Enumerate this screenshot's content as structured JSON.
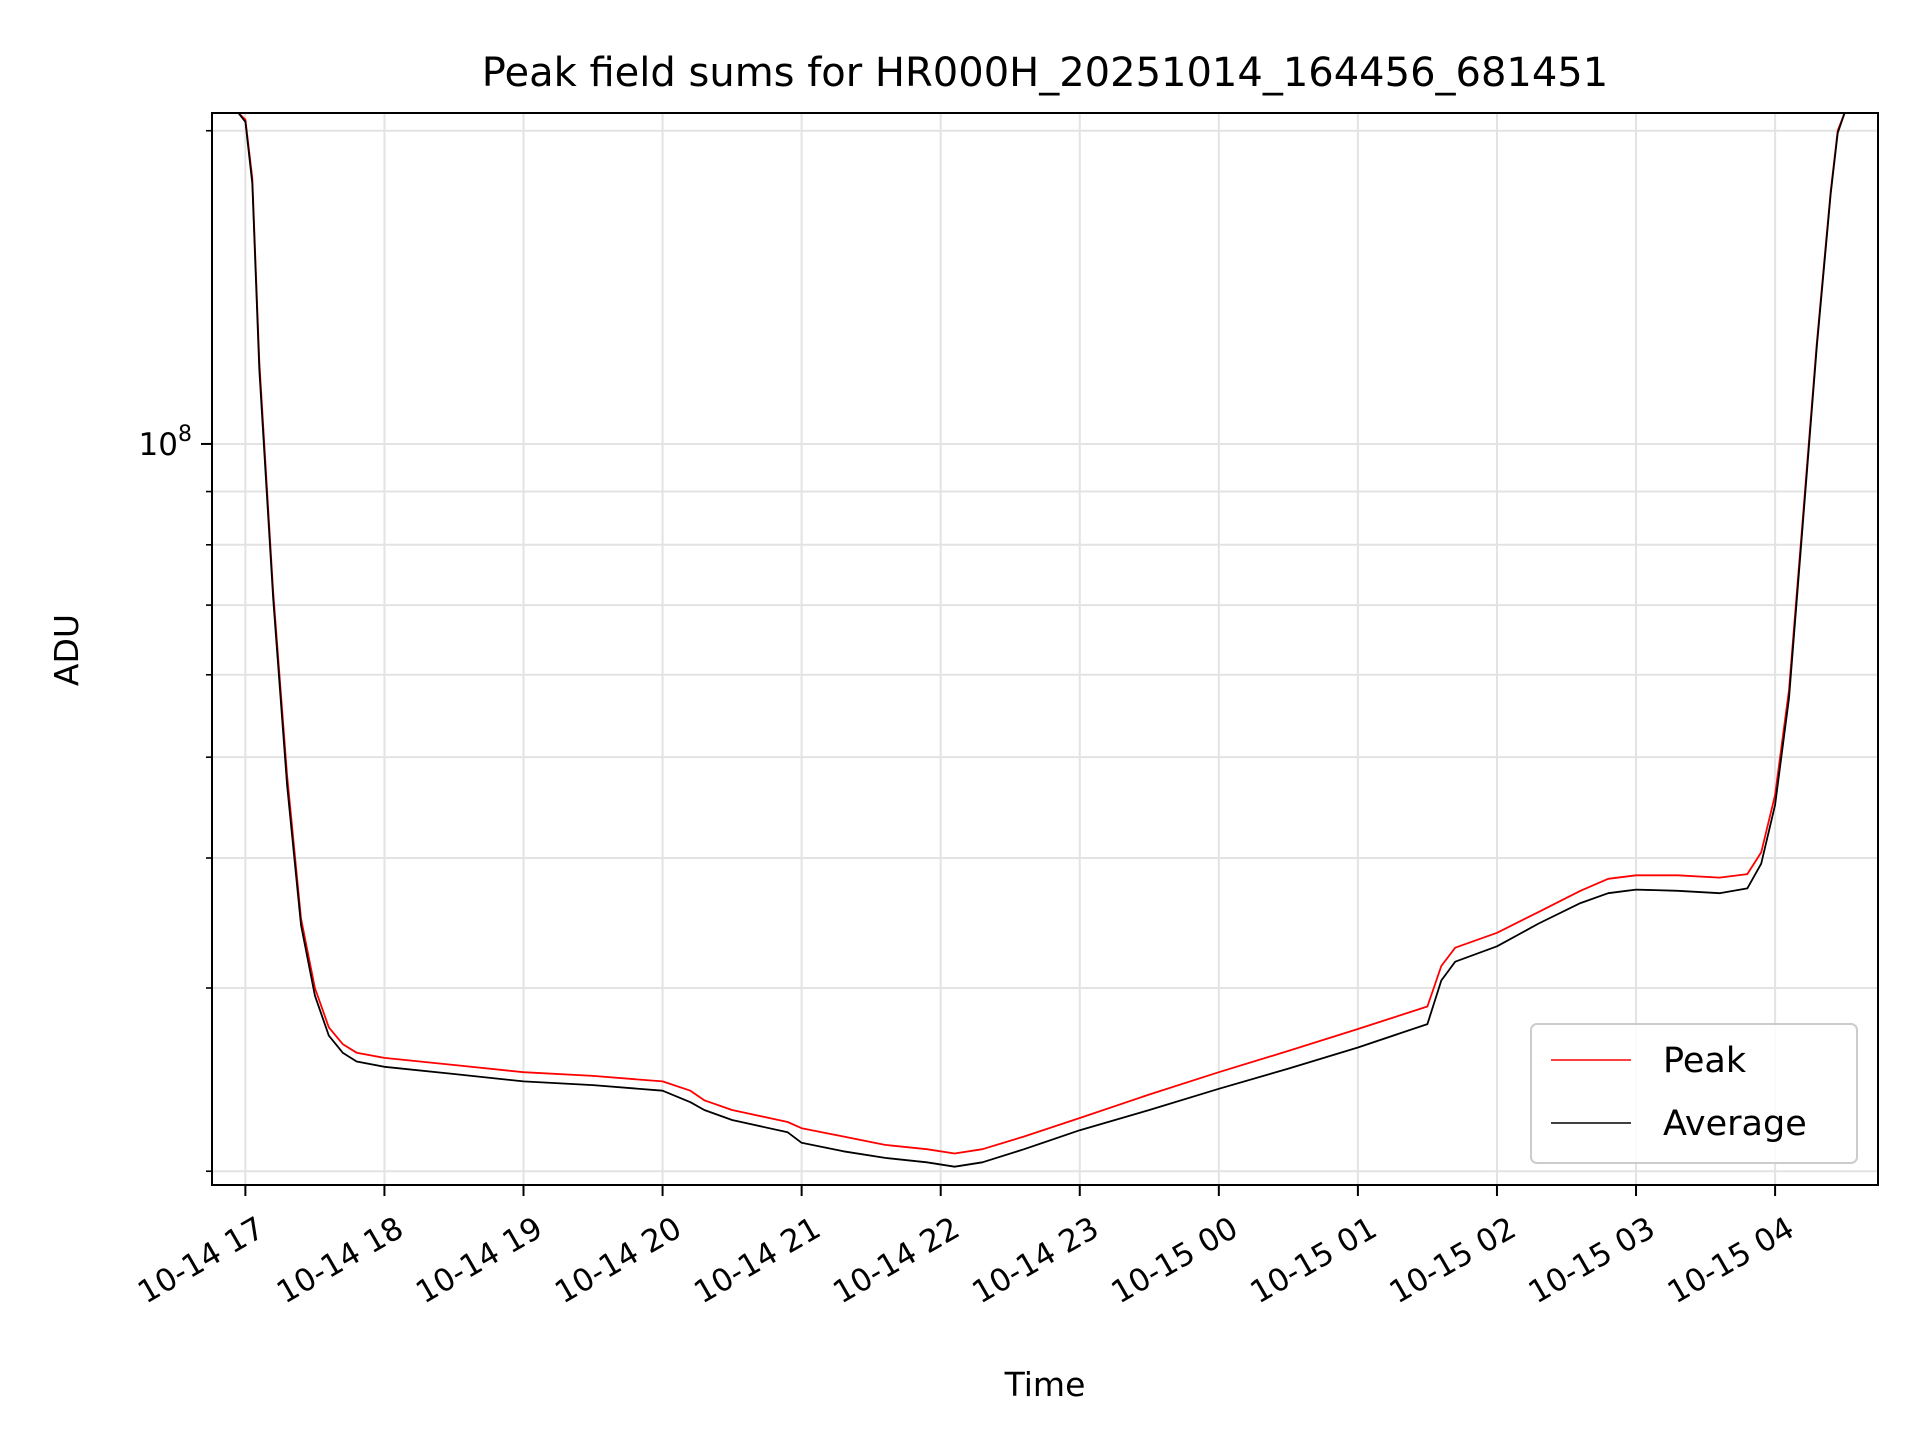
{
  "chart_data": {
    "type": "line",
    "title": "Peak field sums for HR000H_20251014_164456_681451",
    "xlabel": "Time",
    "ylabel": "ADU",
    "yscale": "log",
    "ylim": [
      19400000,
      208000000
    ],
    "xlim": [
      16.76,
      28.74
    ],
    "grid": true,
    "legend_position": "bottom-right",
    "y_major_tick": {
      "value": 100000000,
      "base": "10",
      "exp": "8"
    },
    "y_minor_ticks": [
      20000000,
      30000000,
      40000000,
      50000000,
      60000000,
      70000000,
      80000000,
      90000000,
      200000000
    ],
    "x_ticks": [
      {
        "value": 17,
        "label": "10-14 17"
      },
      {
        "value": 18,
        "label": "10-14 18"
      },
      {
        "value": 19,
        "label": "10-14 19"
      },
      {
        "value": 20,
        "label": "10-14 20"
      },
      {
        "value": 21,
        "label": "10-14 21"
      },
      {
        "value": 22,
        "label": "10-14 22"
      },
      {
        "value": 23,
        "label": "10-14 23"
      },
      {
        "value": 24,
        "label": "10-15 00"
      },
      {
        "value": 25,
        "label": "10-15 01"
      },
      {
        "value": 26,
        "label": "10-15 02"
      },
      {
        "value": 27,
        "label": "10-15 03"
      },
      {
        "value": 28,
        "label": "10-15 04"
      }
    ],
    "series": [
      {
        "name": "Peak",
        "color": "#ff0000",
        "x": [
          16.75,
          16.95,
          17.0,
          17.05,
          17.1,
          17.2,
          17.3,
          17.4,
          17.5,
          17.6,
          17.7,
          17.8,
          18.0,
          18.5,
          19.0,
          19.5,
          20.0,
          20.2,
          20.3,
          20.5,
          20.9,
          21.0,
          21.3,
          21.6,
          21.9,
          22.1,
          22.3,
          22.6,
          23.0,
          23.5,
          24.0,
          24.5,
          25.0,
          25.5,
          25.6,
          25.7,
          26.0,
          26.3,
          26.6,
          26.8,
          27.0,
          27.3,
          27.6,
          27.8,
          27.9,
          28.0,
          28.1,
          28.2,
          28.3,
          28.4,
          28.45,
          28.5
        ],
        "y": [
          208000000,
          208000000,
          205000000,
          180000000,
          120000000,
          72000000,
          48000000,
          35000000,
          30000000,
          27500000,
          26500000,
          26000000,
          25700000,
          25300000,
          24900000,
          24700000,
          24400000,
          23900000,
          23400000,
          22900000,
          22300000,
          22000000,
          21600000,
          21200000,
          21000000,
          20800000,
          21000000,
          21600000,
          22500000,
          23700000,
          24900000,
          26100000,
          27400000,
          28800000,
          31500000,
          32800000,
          33900000,
          35500000,
          37200000,
          38200000,
          38500000,
          38500000,
          38300000,
          38600000,
          40500000,
          46000000,
          58000000,
          85000000,
          125000000,
          175000000,
          200000000,
          208000000
        ]
      },
      {
        "name": "Average",
        "color": "#000000",
        "x": [
          16.75,
          16.95,
          17.0,
          17.05,
          17.1,
          17.2,
          17.3,
          17.4,
          17.5,
          17.6,
          17.7,
          17.8,
          18.0,
          18.5,
          19.0,
          19.5,
          20.0,
          20.2,
          20.3,
          20.5,
          20.9,
          21.0,
          21.3,
          21.6,
          21.9,
          22.1,
          22.3,
          22.6,
          23.0,
          23.5,
          24.0,
          24.5,
          25.0,
          25.5,
          25.6,
          25.7,
          26.0,
          26.3,
          26.6,
          26.8,
          27.0,
          27.3,
          27.6,
          27.8,
          27.9,
          28.0,
          28.1,
          28.2,
          28.3,
          28.4,
          28.45,
          28.5
        ],
        "y": [
          208000000,
          208000000,
          204000000,
          178000000,
          118000000,
          71000000,
          47000000,
          34500000,
          29500000,
          27000000,
          26000000,
          25500000,
          25200000,
          24800000,
          24400000,
          24200000,
          23900000,
          23300000,
          22900000,
          22400000,
          21800000,
          21300000,
          20900000,
          20600000,
          20400000,
          20200000,
          20400000,
          21000000,
          21900000,
          22900000,
          24000000,
          25100000,
          26300000,
          27700000,
          30500000,
          31800000,
          32900000,
          34600000,
          36200000,
          37000000,
          37300000,
          37200000,
          37000000,
          37400000,
          39500000,
          45000000,
          57000000,
          84000000,
          124000000,
          174000000,
          199000000,
          208000000
        ]
      }
    ]
  }
}
